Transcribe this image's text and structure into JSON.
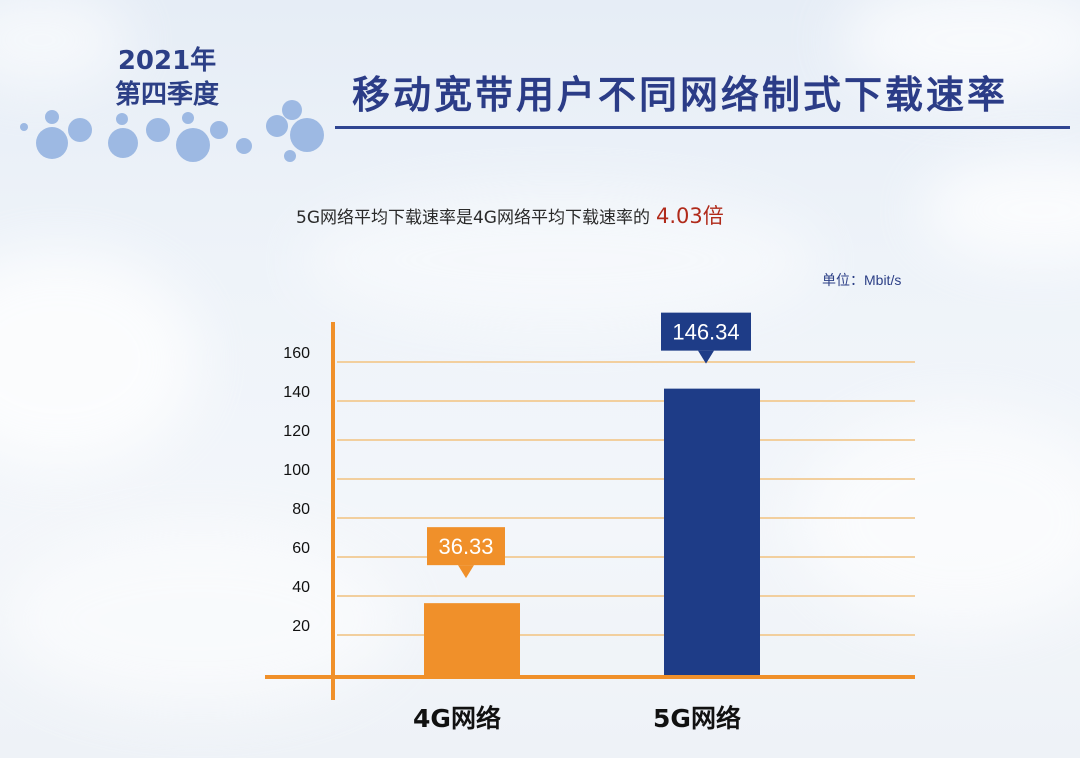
{
  "header": {
    "quarter_year": "2021年",
    "quarter_label": "第四季度",
    "title": "移动宽带用户不同网络制式下载速率"
  },
  "summary": {
    "text": "5G网络平均下载速率是4G网络平均下载速率的",
    "ratio": "4.03倍"
  },
  "unit_label": "单位：Mbit/s",
  "colors": {
    "title": "#2b3c87",
    "bar_4g": "#f0902a",
    "bar_5g": "#1e3c87",
    "axis": "#f0902a",
    "grid": "#f2cf9e",
    "ratio": "#b02a1a"
  },
  "chart_data": {
    "type": "bar",
    "categories": [
      "4G网络",
      "5G网络"
    ],
    "values": [
      36.33,
      146.34
    ],
    "value_labels": [
      "36.33",
      "146.34"
    ],
    "y_ticks": [
      20,
      40,
      60,
      80,
      100,
      120,
      140,
      160
    ],
    "ylim": [
      0,
      160
    ],
    "xlabel": "",
    "ylabel": "",
    "grid": true,
    "legend": "none"
  }
}
